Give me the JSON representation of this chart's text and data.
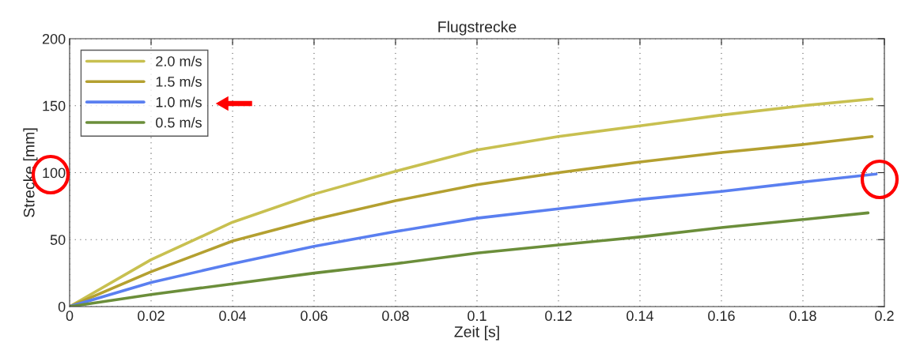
{
  "chart_data": {
    "type": "line",
    "title": "Flugstrecke",
    "xlabel": "Zeit [s]",
    "ylabel": "Strecke [mm]",
    "xlim": [
      0,
      0.2
    ],
    "ylim": [
      0,
      200
    ],
    "xticks": [
      0,
      0.02,
      0.04,
      0.06,
      0.08,
      0.1,
      0.12,
      0.14,
      0.16,
      0.18,
      0.2
    ],
    "yticks": [
      0,
      50,
      100,
      150,
      200
    ],
    "grid": true,
    "legend": "top left",
    "marker": "none",
    "line_style": "solid",
    "series": [
      {
        "name": "2.0 m/s",
        "color": "#c8c050",
        "x": [
          0,
          0.02,
          0.04,
          0.06,
          0.08,
          0.1,
          0.12,
          0.14,
          0.16,
          0.18,
          0.197
        ],
        "values": [
          0,
          35,
          63,
          84,
          101,
          117,
          127,
          135,
          143,
          150,
          155
        ]
      },
      {
        "name": "1.5 m/s",
        "color": "#b4a030",
        "x": [
          0,
          0.02,
          0.04,
          0.06,
          0.08,
          0.1,
          0.12,
          0.14,
          0.16,
          0.18,
          0.197
        ],
        "values": [
          0,
          26,
          49,
          65,
          79,
          91,
          100,
          108,
          115,
          121,
          127
        ]
      },
      {
        "name": "1.0 m/s",
        "color": "#5a7ff0",
        "x": [
          0,
          0.02,
          0.04,
          0.06,
          0.08,
          0.1,
          0.12,
          0.14,
          0.16,
          0.18,
          0.198
        ],
        "values": [
          0,
          18,
          32,
          45,
          56,
          66,
          73,
          80,
          86,
          93,
          99
        ]
      },
      {
        "name": "0.5 m/s",
        "color": "#6b8e3a",
        "x": [
          0,
          0.02,
          0.04,
          0.06,
          0.08,
          0.1,
          0.12,
          0.14,
          0.16,
          0.18,
          0.196
        ],
        "values": [
          0,
          9,
          17,
          25,
          32,
          40,
          46,
          52,
          59,
          65,
          70
        ]
      }
    ]
  }
}
